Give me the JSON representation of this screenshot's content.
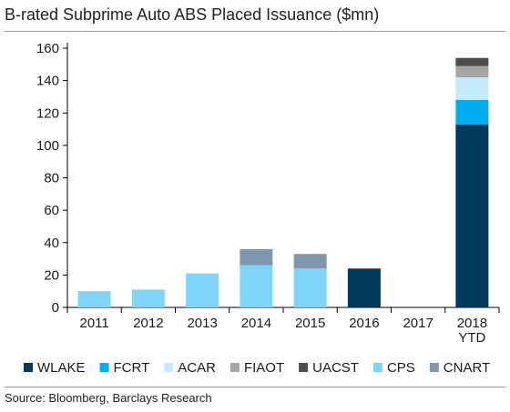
{
  "title": "B-rated Subprime Auto ABS Placed Issuance ($mn)",
  "source": "Source: Bloomberg, Barclays Research",
  "chart_data": {
    "type": "bar",
    "stacked": true,
    "title": "B-rated Subprime Auto ABS Placed Issuance ($mn)",
    "xlabel": "",
    "ylabel": "",
    "ylim": [
      0,
      160
    ],
    "y_ticks": [
      0,
      20,
      40,
      60,
      80,
      100,
      120,
      140,
      160
    ],
    "grid": false,
    "legend_position": "bottom",
    "categories": [
      [
        "2011"
      ],
      [
        "2012"
      ],
      [
        "2013"
      ],
      [
        "2014"
      ],
      [
        "2015"
      ],
      [
        "2016"
      ],
      [
        "2017"
      ],
      [
        "2018",
        "YTD"
      ]
    ],
    "series": [
      {
        "name": "WLAKE",
        "color": "#003a5d",
        "values": [
          0,
          0,
          0,
          0,
          0,
          24,
          0,
          113
        ]
      },
      {
        "name": "FCRT",
        "color": "#00aeef",
        "values": [
          0,
          0,
          0,
          0,
          0,
          0,
          0,
          15
        ]
      },
      {
        "name": "ACAR",
        "color": "#c5ebfa",
        "values": [
          0,
          0,
          0,
          0,
          0,
          0,
          0,
          14
        ]
      },
      {
        "name": "FIAOT",
        "color": "#a6a6a6",
        "values": [
          0,
          0,
          0,
          0,
          0,
          0,
          0,
          7
        ]
      },
      {
        "name": "UACST",
        "color": "#4d4d4d",
        "values": [
          0,
          0,
          0,
          0,
          0,
          0,
          0,
          5
        ]
      },
      {
        "name": "CPS",
        "color": "#7fd5f7",
        "values": [
          10,
          11,
          21,
          26,
          24,
          0,
          0,
          0
        ]
      },
      {
        "name": "CNART",
        "color": "#7f97ad",
        "values": [
          0,
          0,
          0,
          10,
          9,
          0,
          0,
          0
        ]
      }
    ]
  }
}
